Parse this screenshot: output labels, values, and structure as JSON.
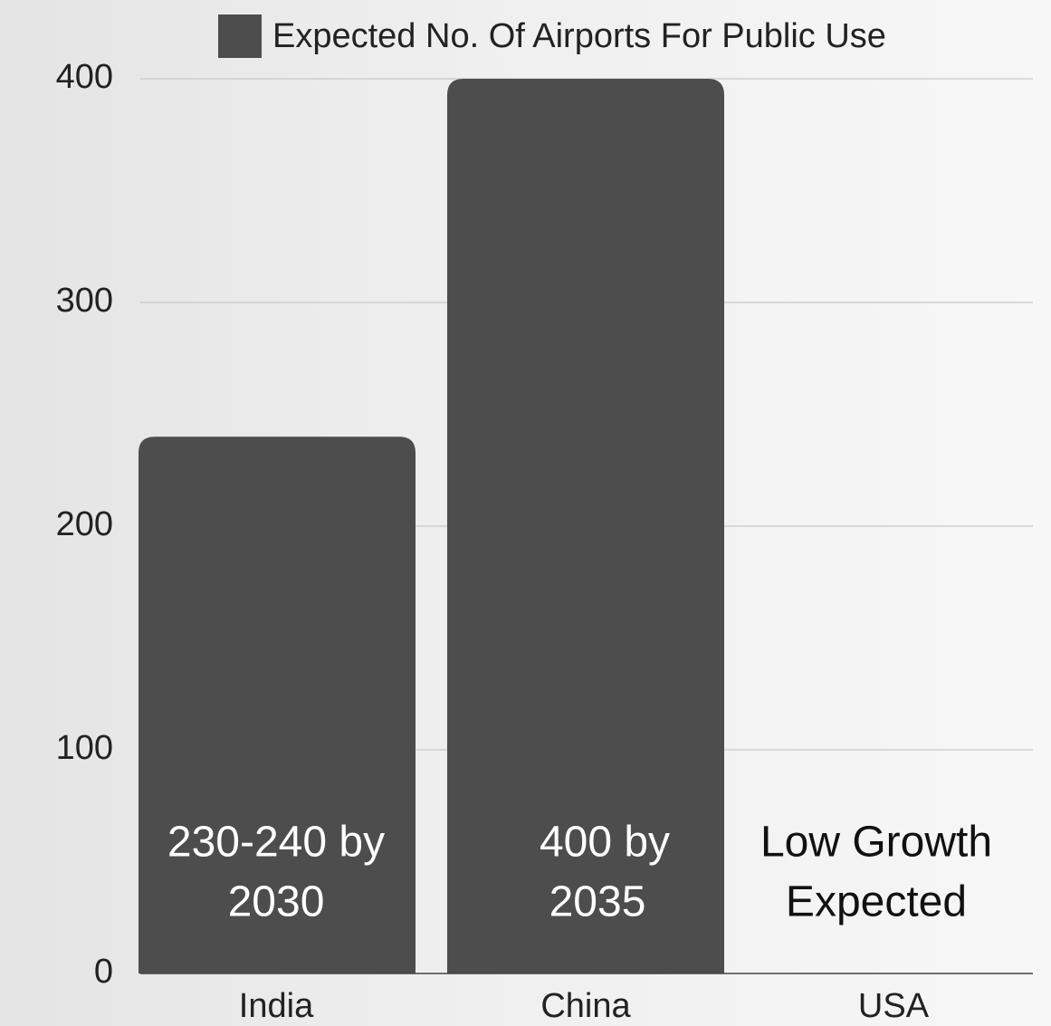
{
  "chart_data": {
    "type": "bar",
    "categories": [
      "India",
      "China",
      "USA"
    ],
    "series": [
      {
        "name": "Expected No. Of Airports For Public Use",
        "values": [
          240,
          400,
          0
        ]
      }
    ],
    "data_labels": [
      [
        "230-240 by",
        "2030"
      ],
      [
        "400 by",
        "2035"
      ],
      [
        "Low Growth",
        "Expected"
      ]
    ],
    "yticks": [
      0,
      100,
      200,
      300,
      400
    ],
    "ylim": [
      0,
      400
    ],
    "xlabel": "",
    "ylabel": "",
    "grid": true,
    "legend_position": "top"
  },
  "colors": {
    "bar": "#4d4d4d",
    "grid": "#c8c8c8",
    "axis": "#444444",
    "text": "#222222",
    "bar_label": "#ffffff",
    "empty_label": "#111111"
  }
}
